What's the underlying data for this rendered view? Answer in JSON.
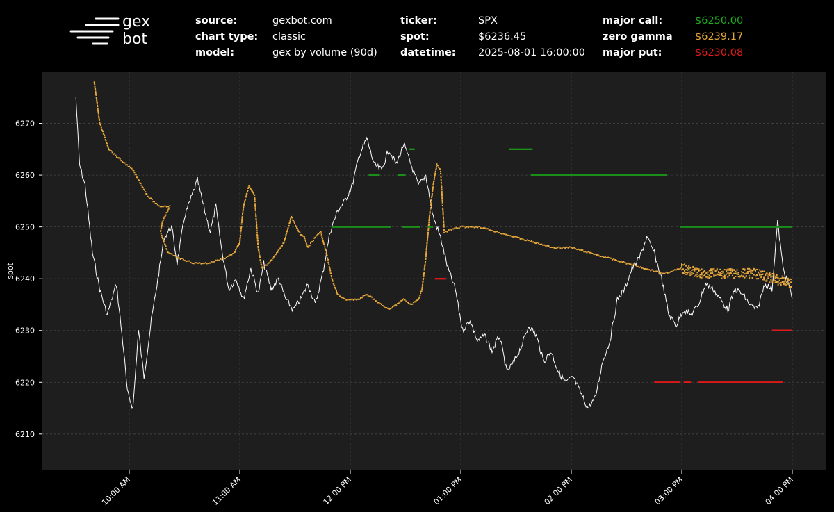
{
  "brand": {
    "line1": "gex",
    "line2": "bot"
  },
  "header": {
    "rows": [
      [
        {
          "label": "source:",
          "value": "gexbot.com"
        },
        {
          "label": "ticker:",
          "value": "SPX"
        },
        {
          "label": "major call:",
          "value": "$6250.00",
          "color": "#1faa1f"
        }
      ],
      [
        {
          "label": "chart type:",
          "value": "classic"
        },
        {
          "label": "spot:",
          "value": "$6236.45"
        },
        {
          "label": "zero gamma",
          "value": "$6239.17",
          "color": "#e8a93a"
        }
      ],
      [
        {
          "label": "model:",
          "value": "gex by volume (90d)"
        },
        {
          "label": "datetime:",
          "value": "2025-08-01 16:00:00"
        },
        {
          "label": "major put:",
          "value": "$6230.08",
          "color": "#e01919"
        }
      ]
    ]
  },
  "colors": {
    "background": "#000000",
    "plot": "#1e1e1e",
    "spot": "#ffffff",
    "zero_gamma": "#e8a93a",
    "call": "#1a8f1a",
    "put": "#dd1a1a"
  },
  "chart_data": {
    "type": "scatter",
    "ylabel": "spot",
    "yticks": [
      6210,
      6220,
      6230,
      6240,
      6250,
      6260,
      6270
    ],
    "ylim": [
      6203,
      6280
    ],
    "xticks": [
      "10:00 AM",
      "11:00 AM",
      "12:00 PM",
      "01:00 PM",
      "02:00 PM",
      "03:00 PM",
      "04:00 PM"
    ],
    "grid": true,
    "series": [
      {
        "kind": "spot_line",
        "color": "#ffffff",
        "points": [
          [
            "09:31",
            6275
          ],
          [
            "09:33",
            6262
          ],
          [
            "09:36",
            6258
          ],
          [
            "09:40",
            6245
          ],
          [
            "09:44",
            6238
          ],
          [
            "09:48",
            6233
          ],
          [
            "09:53",
            6239
          ],
          [
            "09:57",
            6226
          ],
          [
            "09:59",
            6218
          ],
          [
            "10:02",
            6215
          ],
          [
            "10:05",
            6230
          ],
          [
            "10:08",
            6221
          ],
          [
            "10:12",
            6232
          ],
          [
            "10:16",
            6241
          ],
          [
            "10:19",
            6248
          ],
          [
            "10:23",
            6250
          ],
          [
            "10:26",
            6243
          ],
          [
            "10:30",
            6252
          ],
          [
            "10:34",
            6256
          ],
          [
            "10:37",
            6259
          ],
          [
            "10:41",
            6253
          ],
          [
            "10:44",
            6249
          ],
          [
            "10:47",
            6254
          ],
          [
            "10:50",
            6246
          ],
          [
            "10:54",
            6238
          ],
          [
            "10:58",
            6240
          ],
          [
            "11:02",
            6236
          ],
          [
            "11:06",
            6242
          ],
          [
            "11:10",
            6237
          ],
          [
            "11:13",
            6243
          ],
          [
            "11:17",
            6238
          ],
          [
            "11:21",
            6240
          ],
          [
            "11:25",
            6236
          ],
          [
            "11:29",
            6234
          ],
          [
            "11:33",
            6236
          ],
          [
            "11:37",
            6239
          ],
          [
            "11:41",
            6235
          ],
          [
            "11:45",
            6241
          ],
          [
            "11:49",
            6249
          ],
          [
            "11:53",
            6253
          ],
          [
            "11:57",
            6255
          ],
          [
            "12:01",
            6258
          ],
          [
            "12:05",
            6264
          ],
          [
            "12:09",
            6267
          ],
          [
            "12:13",
            6262
          ],
          [
            "12:17",
            6261
          ],
          [
            "12:21",
            6265
          ],
          [
            "12:25",
            6262
          ],
          [
            "12:29",
            6266
          ],
          [
            "12:33",
            6262
          ],
          [
            "12:37",
            6258
          ],
          [
            "12:41",
            6260
          ],
          [
            "12:45",
            6252
          ],
          [
            "12:49",
            6248
          ],
          [
            "12:53",
            6242
          ],
          [
            "12:57",
            6238
          ],
          [
            "13:01",
            6230
          ],
          [
            "13:05",
            6232
          ],
          [
            "13:09",
            6228
          ],
          [
            "13:13",
            6229
          ],
          [
            "13:17",
            6226
          ],
          [
            "13:21",
            6229
          ],
          [
            "13:25",
            6222
          ],
          [
            "13:29",
            6224
          ],
          [
            "13:33",
            6227
          ],
          [
            "13:37",
            6231
          ],
          [
            "13:41",
            6229
          ],
          [
            "13:45",
            6224
          ],
          [
            "13:49",
            6226
          ],
          [
            "13:53",
            6222
          ],
          [
            "13:57",
            6220
          ],
          [
            "14:01",
            6221
          ],
          [
            "14:05",
            6218
          ],
          [
            "14:09",
            6215
          ],
          [
            "14:13",
            6217
          ],
          [
            "14:17",
            6224
          ],
          [
            "14:21",
            6228
          ],
          [
            "14:25",
            6236
          ],
          [
            "14:29",
            6238
          ],
          [
            "14:33",
            6242
          ],
          [
            "14:37",
            6244
          ],
          [
            "14:41",
            6248
          ],
          [
            "14:45",
            6245
          ],
          [
            "14:49",
            6240
          ],
          [
            "14:53",
            6233
          ],
          [
            "14:57",
            6231
          ],
          [
            "15:01",
            6234
          ],
          [
            "15:05",
            6233
          ],
          [
            "15:09",
            6235
          ],
          [
            "15:13",
            6239
          ],
          [
            "15:17",
            6238
          ],
          [
            "15:21",
            6236
          ],
          [
            "15:25",
            6234
          ],
          [
            "15:29",
            6238
          ],
          [
            "15:33",
            6237
          ],
          [
            "15:37",
            6235
          ],
          [
            "15:41",
            6234
          ],
          [
            "15:45",
            6239
          ],
          [
            "15:49",
            6238
          ],
          [
            "15:52",
            6251
          ],
          [
            "15:55",
            6242
          ],
          [
            "15:58",
            6239
          ],
          [
            "16:00",
            6236
          ]
        ]
      },
      {
        "kind": "zero_gamma",
        "color": "#e8a93a",
        "points": [
          [
            "09:41",
            6278
          ],
          [
            "09:44",
            6270
          ],
          [
            "09:49",
            6265
          ],
          [
            "09:55",
            6263
          ],
          [
            "10:02",
            6261
          ],
          [
            "10:10",
            6256
          ],
          [
            "10:16",
            6254
          ],
          [
            "10:22",
            6254
          ],
          [
            "10:18",
            6251
          ],
          [
            "10:17",
            6249
          ],
          [
            "10:21",
            6245
          ],
          [
            "10:27",
            6244
          ],
          [
            "10:35",
            6243
          ],
          [
            "10:43",
            6243
          ],
          [
            "10:52",
            6244
          ],
          [
            "10:57",
            6245
          ],
          [
            "11:00",
            6247
          ],
          [
            "11:02",
            6254
          ],
          [
            "11:05",
            6258
          ],
          [
            "11:08",
            6256
          ],
          [
            "11:10",
            6246
          ],
          [
            "11:12",
            6242
          ],
          [
            "11:16",
            6243
          ],
          [
            "11:20",
            6245
          ],
          [
            "11:24",
            6247
          ],
          [
            "11:28",
            6252
          ],
          [
            "11:32",
            6249
          ],
          [
            "11:35",
            6248
          ],
          [
            "11:37",
            6246
          ],
          [
            "11:41",
            6248
          ],
          [
            "11:44",
            6249
          ],
          [
            "11:47",
            6245
          ],
          [
            "11:50",
            6240
          ],
          [
            "11:53",
            6237
          ],
          [
            "11:57",
            6236
          ],
          [
            "12:01",
            6236
          ],
          [
            "12:05",
            6236
          ],
          [
            "12:09",
            6237
          ],
          [
            "12:13",
            6236
          ],
          [
            "12:17",
            6235
          ],
          [
            "12:21",
            6234
          ],
          [
            "12:25",
            6235
          ],
          [
            "12:29",
            6236
          ],
          [
            "12:33",
            6235
          ],
          [
            "12:37",
            6236
          ],
          [
            "12:39",
            6238
          ],
          [
            "12:41",
            6244
          ],
          [
            "12:43",
            6252
          ],
          [
            "12:45",
            6258
          ],
          [
            "12:47",
            6262
          ],
          [
            "12:49",
            6261
          ],
          [
            "12:51",
            6249
          ],
          [
            "13:00",
            6250
          ],
          [
            "13:10",
            6250
          ],
          [
            "13:20",
            6249
          ],
          [
            "13:30",
            6248
          ],
          [
            "13:40",
            6247
          ],
          [
            "13:50",
            6246
          ],
          [
            "14:00",
            6246
          ],
          [
            "14:10",
            6245
          ],
          [
            "14:20",
            6244
          ],
          [
            "14:30",
            6243
          ],
          [
            "14:40",
            6242
          ],
          [
            "14:50",
            6241
          ],
          [
            "15:00",
            6242
          ],
          [
            "15:10",
            6241
          ],
          [
            "15:20",
            6241
          ],
          [
            "15:30",
            6241
          ],
          [
            "15:40",
            6241
          ],
          [
            "15:50",
            6240
          ],
          [
            "16:00",
            6239
          ]
        ]
      },
      {
        "kind": "call_levels",
        "color": "#1a8f1a",
        "segments": [
          [
            [
              "11:50",
              6250
            ],
            [
              "12:22",
              6250
            ]
          ],
          [
            [
              "12:28",
              6250
            ],
            [
              "12:38",
              6250
            ]
          ],
          [
            [
              "12:42",
              6250
            ],
            [
              "12:45",
              6250
            ]
          ],
          [
            [
              "12:10",
              6260
            ],
            [
              "12:16",
              6260
            ]
          ],
          [
            [
              "12:26",
              6260
            ],
            [
              "12:30",
              6260
            ]
          ],
          [
            [
              "12:32",
              6265
            ],
            [
              "12:35",
              6265
            ]
          ],
          [
            [
              "13:26",
              6265
            ],
            [
              "13:39",
              6265
            ]
          ],
          [
            [
              "13:38",
              6260
            ],
            [
              "14:52",
              6260
            ]
          ],
          [
            [
              "14:59",
              6250
            ],
            [
              "16:00",
              6250
            ]
          ]
        ]
      },
      {
        "kind": "put_levels",
        "color": "#dd1a1a",
        "segments": [
          [
            [
              "12:46",
              6240
            ],
            [
              "12:52",
              6240
            ]
          ],
          [
            [
              "14:45",
              6220
            ],
            [
              "14:59",
              6220
            ]
          ],
          [
            [
              "15:01",
              6220
            ],
            [
              "15:05",
              6220
            ]
          ],
          [
            [
              "15:09",
              6220
            ],
            [
              "15:55",
              6220
            ]
          ],
          [
            [
              "15:49",
              6230
            ],
            [
              "16:00",
              6230
            ]
          ]
        ]
      }
    ]
  }
}
